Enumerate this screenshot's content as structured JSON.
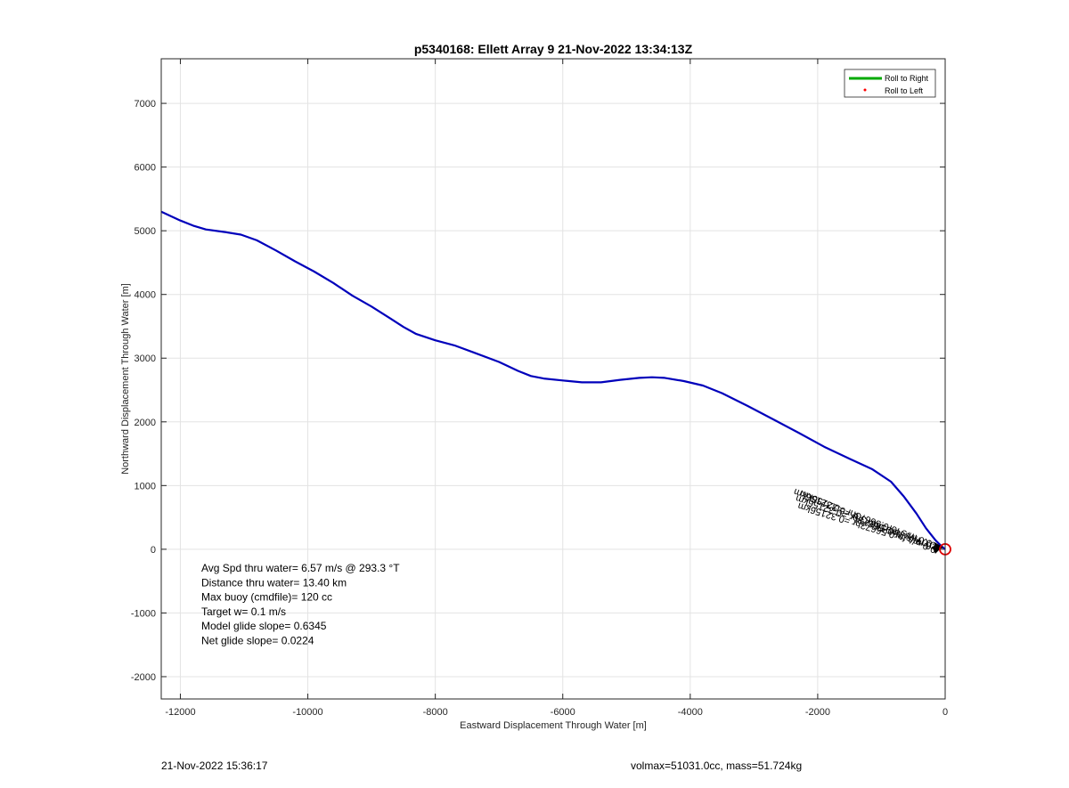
{
  "chart_data": {
    "type": "line",
    "title": "p5340168: Ellett Array 9 21-Nov-2022 13:34:13Z",
    "xlabel": "Eastward Displacement Through Water [m]",
    "ylabel": "Northward Displacement Through Water [m]",
    "xlim": [
      -12300,
      0
    ],
    "ylim": [
      -2350,
      7700
    ],
    "x_ticks": [
      -12000,
      -10000,
      -8000,
      -6000,
      -4000,
      -2000,
      0
    ],
    "y_ticks": [
      -2000,
      -1000,
      0,
      1000,
      2000,
      3000,
      4000,
      5000,
      6000,
      7000
    ],
    "grid": true,
    "legend_position": "top-right",
    "legend": [
      {
        "label": "Roll to Right",
        "color": "#00aa00",
        "style": "line"
      },
      {
        "label": "Roll to Left",
        "color": "#ff0000",
        "style": "dot"
      }
    ],
    "series": [
      {
        "color": "#0000bb",
        "x": [
          -12300,
          -12000,
          -11800,
          -11600,
          -11300,
          -11050,
          -10800,
          -10500,
          -10200,
          -9900,
          -9600,
          -9300,
          -9000,
          -8700,
          -8500,
          -8300,
          -8000,
          -7700,
          -7400,
          -7000,
          -6700,
          -6500,
          -6300,
          -6000,
          -5700,
          -5400,
          -5100,
          -4800,
          -4600,
          -4400,
          -4100,
          -3800,
          -3500,
          -3100,
          -2700,
          -2300,
          -1900,
          -1500,
          -1150,
          -850,
          -650,
          -450,
          -300,
          -150,
          -60,
          0
        ],
        "y": [
          5300,
          5160,
          5080,
          5020,
          4980,
          4940,
          4850,
          4690,
          4520,
          4360,
          4180,
          3980,
          3810,
          3620,
          3490,
          3380,
          3280,
          3200,
          3090,
          2940,
          2800,
          2720,
          2680,
          2650,
          2620,
          2620,
          2660,
          2690,
          2700,
          2690,
          2640,
          2570,
          2450,
          2250,
          2040,
          1830,
          1610,
          1420,
          1260,
          1060,
          830,
          560,
          330,
          140,
          50,
          0
        ]
      }
    ],
    "start_marker": {
      "x": 0,
      "y": 0,
      "color": "#dd0000"
    },
    "track_annotation": "(cluster of overlapping labels: 0.0 m/s for0.56673hr =0.32156km)",
    "stats_text": [
      "Avg Spd thru water=  6.57 m/s @ 293.3 °T",
      "Distance thru water= 13.40 km",
      "Max buoy (cmdfile)= 120 cc",
      "Target w= 0.1 m/s",
      "Model glide slope= 0.6345",
      "Net glide slope= 0.0224"
    ]
  },
  "footer": {
    "left": "21-Nov-2022 15:36:17",
    "right": "volmax=51031.0cc, mass=51.724kg"
  }
}
